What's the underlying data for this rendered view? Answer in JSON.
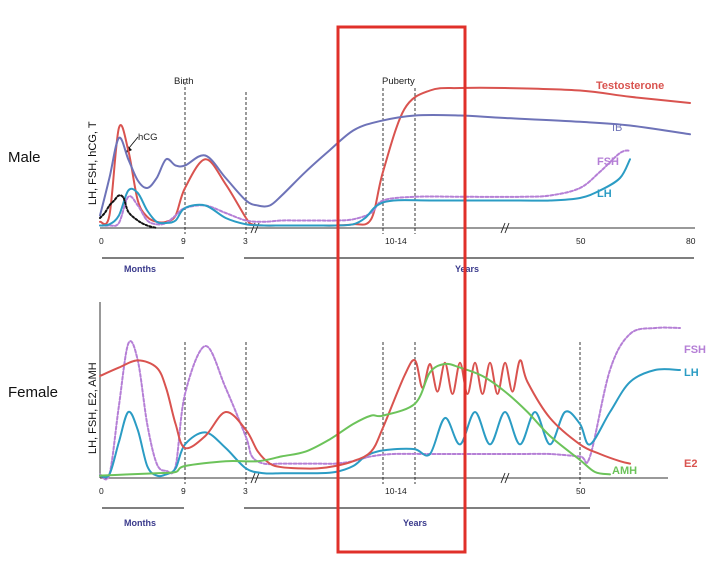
{
  "colors": {
    "testosterone": "#d9534f",
    "ib": "#6e73b8",
    "fsh": "#b57fd6",
    "lh": "#2b9cc4",
    "hcg": "#111111",
    "e2": "#d9534f",
    "amh": "#6cc35a",
    "highlight": "#e0302a"
  },
  "chart_data": [
    {
      "type": "line",
      "row_label": "Male",
      "ylabel": "LH, FSH, hCG, T",
      "xlabel_months": "Months",
      "xlabel_years": "Years",
      "x_ticks": [
        "0",
        "9",
        "3",
        "10-14",
        "50",
        "80"
      ],
      "annotations": {
        "birth": "Birth",
        "puberty": "Puberty",
        "hcg": "hCG"
      },
      "series": [
        {
          "key": "testosterone",
          "name": "Testosterone",
          "style": "solid",
          "points": [
            [
              0,
              5
            ],
            [
              1,
              10
            ],
            [
              2,
              80
            ],
            [
              3,
              62
            ],
            [
              4,
              22
            ],
            [
              5,
              9
            ],
            [
              6,
              5
            ],
            [
              7,
              5
            ],
            [
              8,
              10
            ],
            [
              9,
              32
            ],
            [
              10,
              55
            ],
            [
              11,
              35
            ],
            [
              12,
              8
            ],
            [
              13,
              3
            ],
            [
              15,
              2
            ],
            [
              18,
              2
            ],
            [
              21,
              2
            ],
            [
              24,
              2
            ],
            [
              27,
              2
            ],
            [
              30,
              3
            ],
            [
              33,
              7
            ],
            [
              35,
              45
            ],
            [
              37,
              95
            ],
            [
              40,
              110
            ],
            [
              44,
              112
            ],
            [
              50,
              112
            ],
            [
              60,
              110
            ],
            [
              70,
              105
            ],
            [
              82,
              100
            ]
          ]
        },
        {
          "key": "ib",
          "name": "IB",
          "style": "solid",
          "points": [
            [
              0,
              10
            ],
            [
              1,
              40
            ],
            [
              2,
              72
            ],
            [
              3,
              55
            ],
            [
              4,
              38
            ],
            [
              5,
              32
            ],
            [
              6,
              40
            ],
            [
              7,
              55
            ],
            [
              8,
              50
            ],
            [
              9,
              50
            ],
            [
              10,
              58
            ],
            [
              11,
              40
            ],
            [
              12,
              22
            ],
            [
              14,
              18
            ],
            [
              16,
              18
            ],
            [
              18,
              26
            ],
            [
              22,
              45
            ],
            [
              26,
              62
            ],
            [
              30,
              78
            ],
            [
              34,
              85
            ],
            [
              38,
              90
            ],
            [
              44,
              90
            ],
            [
              50,
              88
            ],
            [
              60,
              85
            ],
            [
              70,
              82
            ],
            [
              82,
              75
            ]
          ]
        },
        {
          "key": "fsh",
          "name": "FSH",
          "style": "dashed",
          "points": [
            [
              0,
              2
            ],
            [
              1,
              2
            ],
            [
              2,
              4
            ],
            [
              3,
              25
            ],
            [
              4,
              18
            ],
            [
              5,
              6
            ],
            [
              6,
              3
            ],
            [
              7,
              4
            ],
            [
              8,
              10
            ],
            [
              9,
              16
            ],
            [
              10,
              18
            ],
            [
              11,
              12
            ],
            [
              12,
              6
            ],
            [
              15,
              5
            ],
            [
              18,
              6
            ],
            [
              21,
              6
            ],
            [
              24,
              6
            ],
            [
              27,
              6
            ],
            [
              30,
              7
            ],
            [
              33,
              12
            ],
            [
              35,
              22
            ],
            [
              38,
              25
            ],
            [
              45,
              25
            ],
            [
              52,
              25
            ],
            [
              56,
              26
            ],
            [
              60,
              32
            ],
            [
              64,
              45
            ],
            [
              68,
              60
            ],
            [
              70,
              62
            ]
          ]
        },
        {
          "key": "lh",
          "name": "LH",
          "style": "solid",
          "points": [
            [
              0,
              2
            ],
            [
              1,
              3
            ],
            [
              2,
              10
            ],
            [
              3,
              30
            ],
            [
              4,
              28
            ],
            [
              5,
              14
            ],
            [
              6,
              5
            ],
            [
              7,
              4
            ],
            [
              8,
              6
            ],
            [
              9,
              16
            ],
            [
              10,
              18
            ],
            [
              11,
              8
            ],
            [
              12,
              3
            ],
            [
              15,
              2
            ],
            [
              18,
              2
            ],
            [
              21,
              2
            ],
            [
              24,
              2
            ],
            [
              27,
              2
            ],
            [
              30,
              3
            ],
            [
              32,
              8
            ],
            [
              34,
              18
            ],
            [
              36,
              22
            ],
            [
              40,
              22
            ],
            [
              46,
              22
            ],
            [
              52,
              22
            ],
            [
              56,
              22
            ],
            [
              60,
              24
            ],
            [
              64,
              30
            ],
            [
              68,
              40
            ],
            [
              70,
              55
            ]
          ]
        },
        {
          "key": "hcg",
          "name": "hCG",
          "style": "dotted",
          "points": [
            [
              0,
              8
            ],
            [
              0.5,
              12
            ],
            [
              1,
              18
            ],
            [
              1.5,
              22
            ],
            [
              2,
              26
            ],
            [
              2.5,
              24
            ],
            [
              3,
              13
            ],
            [
              4,
              6
            ],
            [
              5,
              2
            ],
            [
              6,
              0
            ]
          ]
        }
      ]
    },
    {
      "type": "line",
      "row_label": "Female",
      "ylabel": "LH, FSH, E2, AMH",
      "xlabel_months": "Months",
      "xlabel_years": "Years",
      "x_ticks": [
        "0",
        "9",
        "3",
        "10-14",
        "50"
      ],
      "series": [
        {
          "key": "fsh",
          "name": "FSH",
          "style": "dashed",
          "points": [
            [
              0,
              3
            ],
            [
              1,
              3
            ],
            [
              2,
              60
            ],
            [
              3,
              112
            ],
            [
              4,
              98
            ],
            [
              5,
              45
            ],
            [
              6,
              12
            ],
            [
              7,
              6
            ],
            [
              8,
              10
            ],
            [
              9,
              70
            ],
            [
              10,
              110
            ],
            [
              11,
              75
            ],
            [
              12,
              34
            ],
            [
              13,
              18
            ],
            [
              15,
              12
            ],
            [
              18,
              12
            ],
            [
              21,
              12
            ],
            [
              24,
              12
            ],
            [
              27,
              12
            ],
            [
              30,
              14
            ],
            [
              33,
              18
            ],
            [
              36,
              20
            ],
            [
              40,
              20
            ],
            [
              46,
              20
            ],
            [
              52,
              20
            ],
            [
              56,
              20
            ],
            [
              60,
              18
            ],
            [
              62,
              18
            ],
            [
              66,
              90
            ],
            [
              70,
              120
            ],
            [
              75,
              125
            ],
            [
              80,
              125
            ]
          ]
        },
        {
          "key": "lh",
          "name": "LH",
          "style": "solid",
          "points": [
            [
              0,
              2
            ],
            [
              1,
              3
            ],
            [
              2,
              30
            ],
            [
              3,
              55
            ],
            [
              4,
              40
            ],
            [
              5,
              10
            ],
            [
              6,
              2
            ],
            [
              7,
              3
            ],
            [
              8,
              8
            ],
            [
              9,
              28
            ],
            [
              10,
              38
            ],
            [
              11,
              25
            ],
            [
              12,
              8
            ],
            [
              15,
              4
            ],
            [
              18,
              4
            ],
            [
              21,
              4
            ],
            [
              24,
              4
            ],
            [
              27,
              5
            ],
            [
              30,
              10
            ],
            [
              32,
              18
            ],
            [
              34,
              22
            ],
            [
              36,
              24
            ],
            [
              38,
              24
            ],
            [
              40,
              20
            ],
            [
              42,
              50
            ],
            [
              44,
              28
            ],
            [
              46,
              55
            ],
            [
              48,
              28
            ],
            [
              50,
              55
            ],
            [
              52,
              28
            ],
            [
              54,
              55
            ],
            [
              56,
              28
            ],
            [
              58,
              55
            ],
            [
              60,
              45
            ],
            [
              62,
              28
            ],
            [
              66,
              55
            ],
            [
              70,
              80
            ],
            [
              75,
              90
            ],
            [
              80,
              90
            ]
          ]
        },
        {
          "key": "e2",
          "name": "E2",
          "style": "solid",
          "points": [
            [
              0,
              85
            ],
            [
              2,
              92
            ],
            [
              4,
              98
            ],
            [
              6,
              92
            ],
            [
              7,
              75
            ],
            [
              8,
              45
            ],
            [
              9,
              25
            ],
            [
              10,
              35
            ],
            [
              11,
              55
            ],
            [
              12,
              40
            ],
            [
              14,
              22
            ],
            [
              16,
              12
            ],
            [
              18,
              9
            ],
            [
              21,
              8
            ],
            [
              24,
              8
            ],
            [
              27,
              10
            ],
            [
              30,
              14
            ],
            [
              33,
              22
            ],
            [
              35,
              42
            ],
            [
              37,
              85
            ],
            [
              38,
              98
            ],
            [
              39,
              75
            ],
            [
              40,
              95
            ],
            [
              41,
              72
            ],
            [
              42,
              96
            ],
            [
              43,
              70
            ],
            [
              44,
              96
            ],
            [
              45,
              70
            ],
            [
              46,
              96
            ],
            [
              47,
              70
            ],
            [
              48,
              96
            ],
            [
              49,
              70
            ],
            [
              50,
              96
            ],
            [
              51,
              72
            ],
            [
              52,
              98
            ],
            [
              53,
              80
            ],
            [
              56,
              50
            ],
            [
              60,
              28
            ],
            [
              64,
              20
            ],
            [
              68,
              14
            ],
            [
              70,
              12
            ]
          ]
        },
        {
          "key": "amh",
          "name": "AMH",
          "style": "solid",
          "points": [
            [
              0,
              2
            ],
            [
              3,
              3
            ],
            [
              6,
              4
            ],
            [
              8,
              5
            ],
            [
              9,
              10
            ],
            [
              11,
              14
            ],
            [
              14,
              14
            ],
            [
              18,
              18
            ],
            [
              22,
              22
            ],
            [
              26,
              32
            ],
            [
              30,
              45
            ],
            [
              33,
              52
            ],
            [
              35,
              52
            ],
            [
              38,
              62
            ],
            [
              40,
              88
            ],
            [
              42,
              95
            ],
            [
              44,
              92
            ],
            [
              47,
              85
            ],
            [
              50,
              72
            ],
            [
              53,
              55
            ],
            [
              56,
              35
            ],
            [
              60,
              15
            ],
            [
              63,
              5
            ],
            [
              66,
              3
            ]
          ]
        }
      ]
    }
  ]
}
